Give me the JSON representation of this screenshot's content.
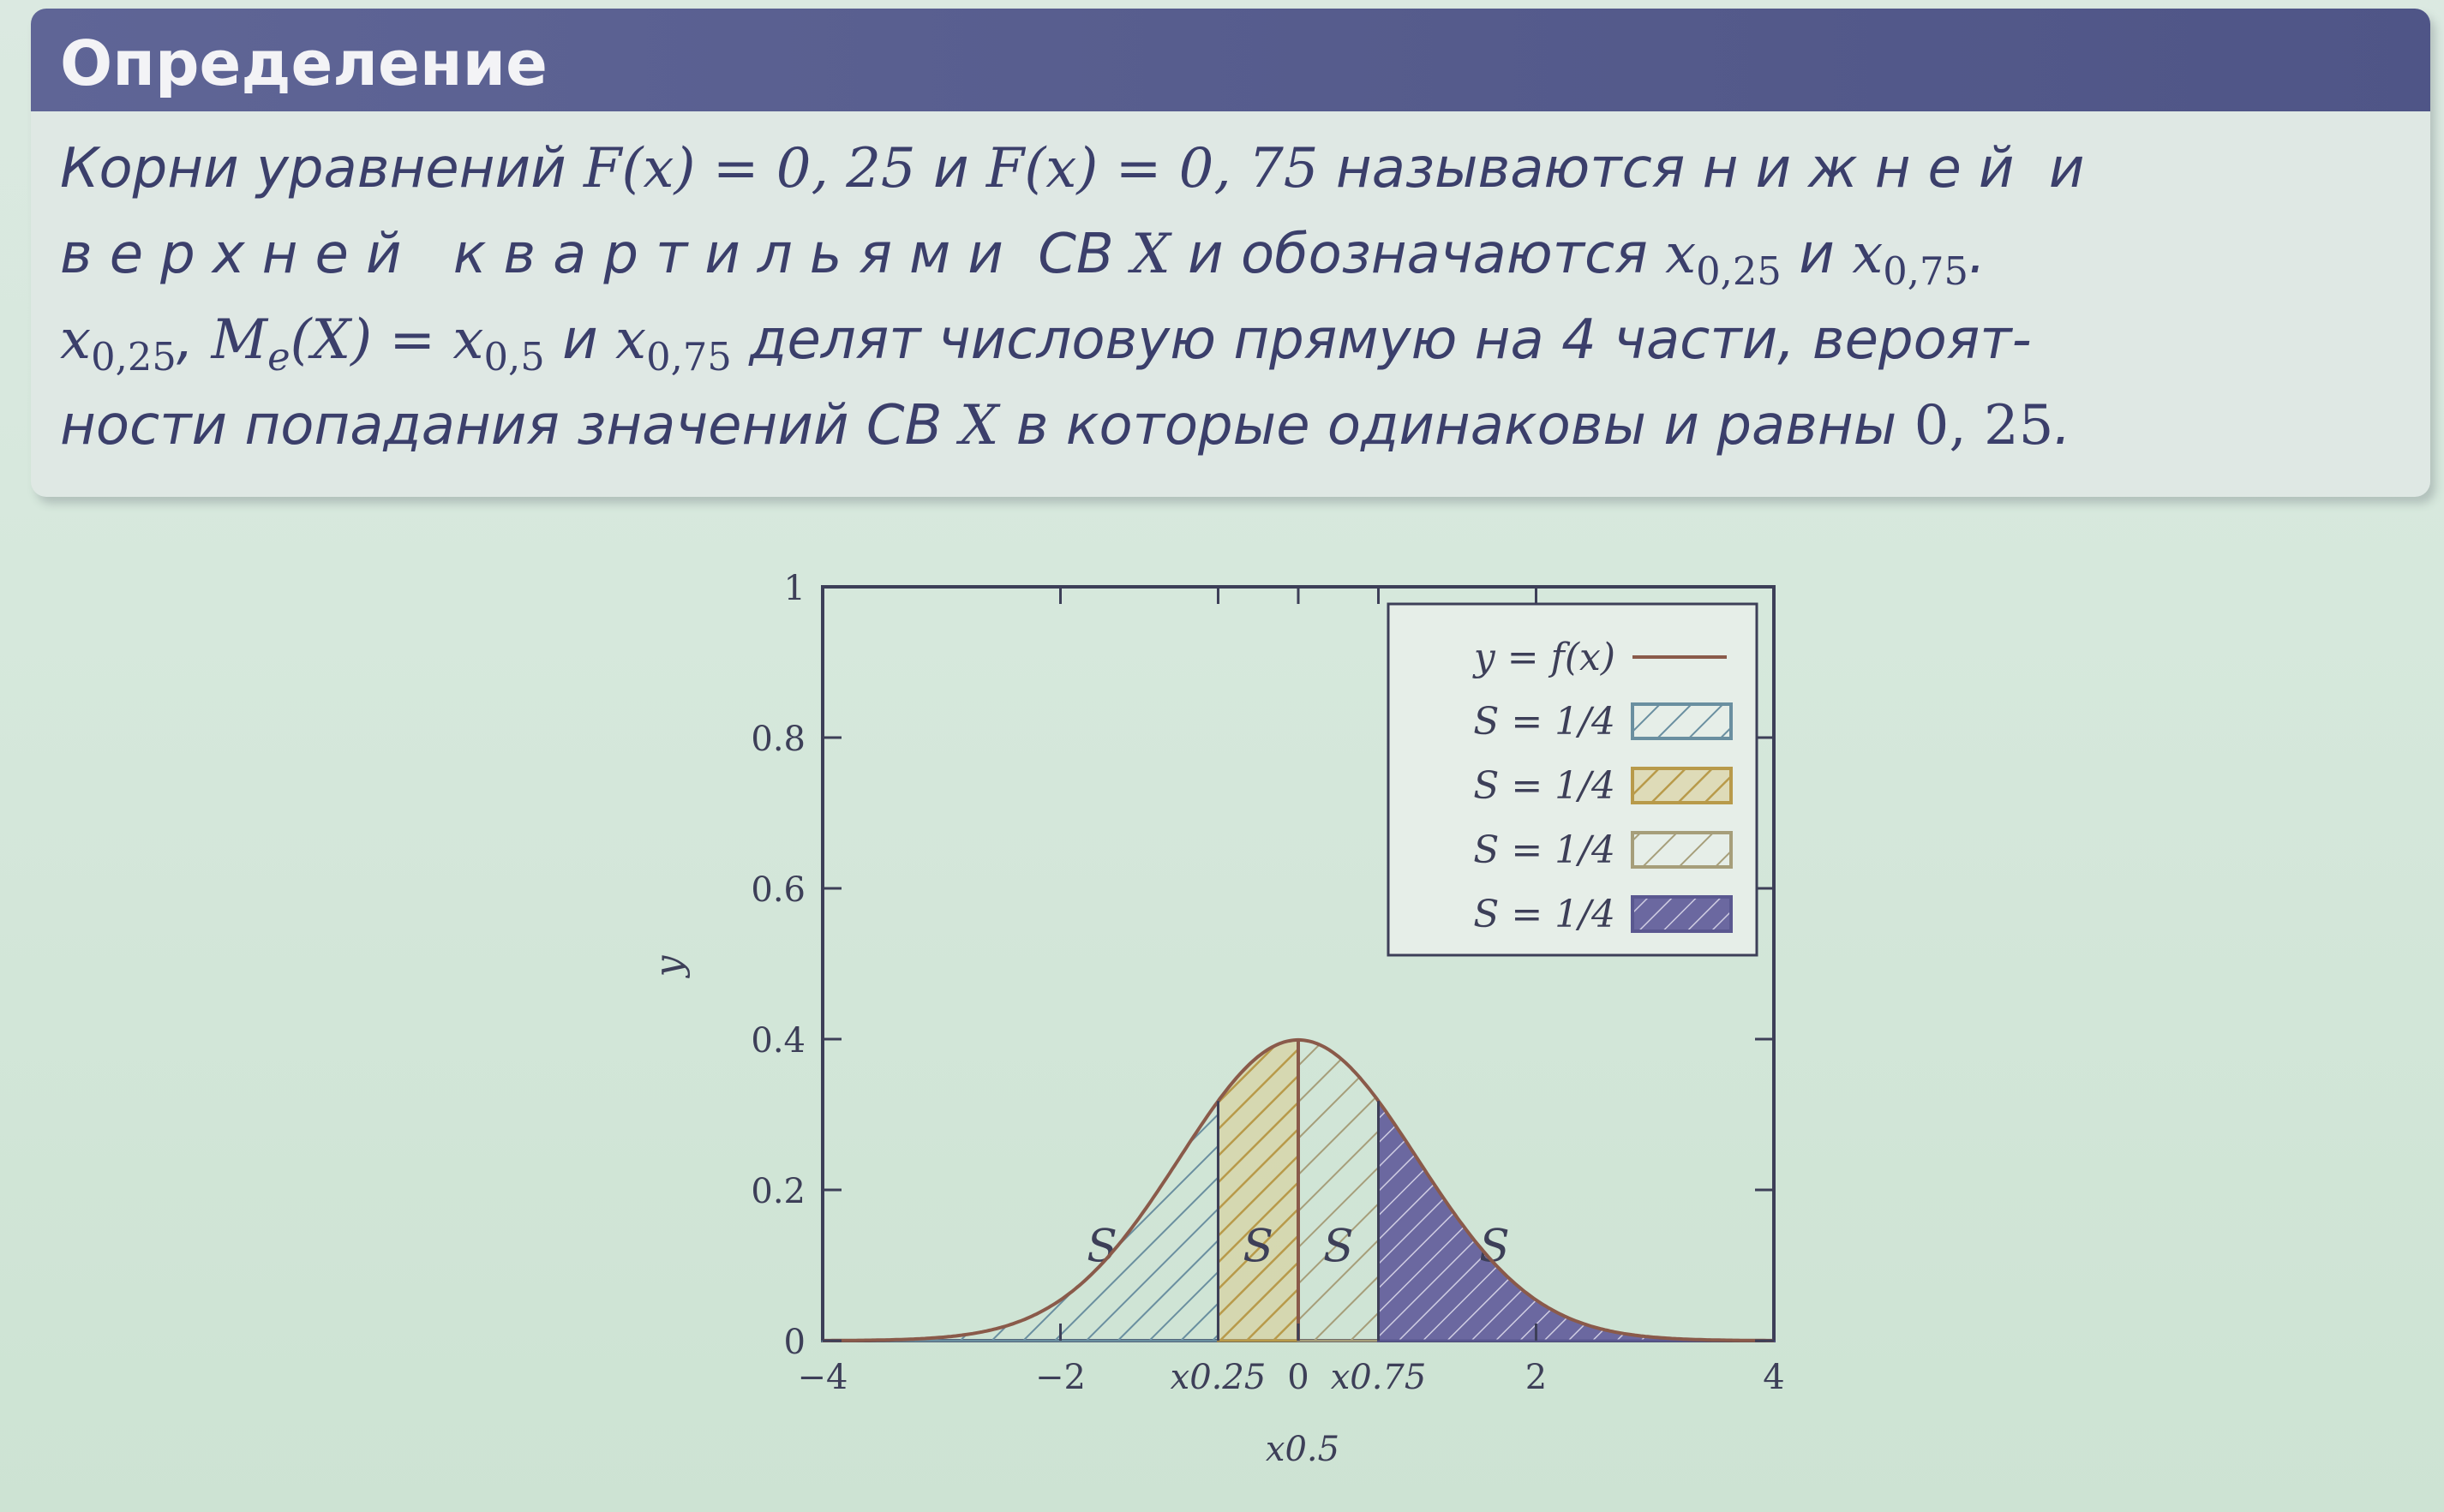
{
  "block": {
    "title": "Определение",
    "lines": {
      "l1": {
        "a": "Корни уравнений ",
        "eq1": "F(x) = 0, 25",
        "b": " и ",
        "eq2": "F(x) = 0, 75",
        "c": " называются ",
        "lower": "нижней",
        "d": " и"
      },
      "l2": {
        "upper": "верхней квартильями",
        "a": " СВ ",
        "x": "X",
        "b": " и обозначаются ",
        "q1": "x",
        "q1sub": "0,25",
        "c": " и ",
        "q3": "x",
        "q3sub": "0,75",
        "d": "."
      },
      "l3": {
        "q1": "x",
        "q1sub": "0,25",
        "a": ", ",
        "me": "M",
        "mesub": "e",
        "meeq": "(X) = ",
        "q2": "x",
        "q2sub": "0,5",
        "b": " и ",
        "q3": "x",
        "q3sub": "0,75",
        "c": " делят числовую прямую на 4 части, вероят-"
      },
      "l4": {
        "a": "ности попадания значений СВ ",
        "x": "X",
        "b": " в которые одинаковы и равны ",
        "val": "0, 25",
        "c": "."
      }
    }
  },
  "chart_data": {
    "type": "area",
    "function": "standard normal density",
    "xlim": [
      -4,
      4
    ],
    "ylim": [
      0,
      1
    ],
    "ylabel": "y",
    "xlabel": "x0.5",
    "y_ticks": [
      "0",
      "0.2",
      "0.4",
      "0.6",
      "0.8",
      "1"
    ],
    "y_tick_values": [
      0,
      0.2,
      0.4,
      0.6,
      0.8,
      1
    ],
    "x_ticks": [
      {
        "label": "−4",
        "value": -4
      },
      {
        "label": "−2",
        "value": -2
      },
      {
        "label": "x0.25",
        "value": -0.674
      },
      {
        "label": "0",
        "value": 0
      },
      {
        "label": "x0.75",
        "value": 0.674
      },
      {
        "label": "2",
        "value": 2
      },
      {
        "label": "4",
        "value": 4
      }
    ],
    "regions": [
      {
        "from": -4,
        "to": -0.674,
        "area": "1/4",
        "label": "S",
        "color": "#6a8fa0"
      },
      {
        "from": -0.674,
        "to": 0,
        "area": "1/4",
        "label": "S",
        "color": "#b89a4a"
      },
      {
        "from": 0,
        "to": 0.674,
        "area": "1/4",
        "label": "S",
        "color": "#a69e7a"
      },
      {
        "from": 0.674,
        "to": 4,
        "area": "1/4",
        "label": "S",
        "color": "#5a5890"
      }
    ],
    "legend": {
      "position": "top-right",
      "entries": [
        "y = f(x)",
        "S = 1/4",
        "S = 1/4",
        "S = 1/4",
        "S = 1/4"
      ]
    },
    "grid": false
  }
}
